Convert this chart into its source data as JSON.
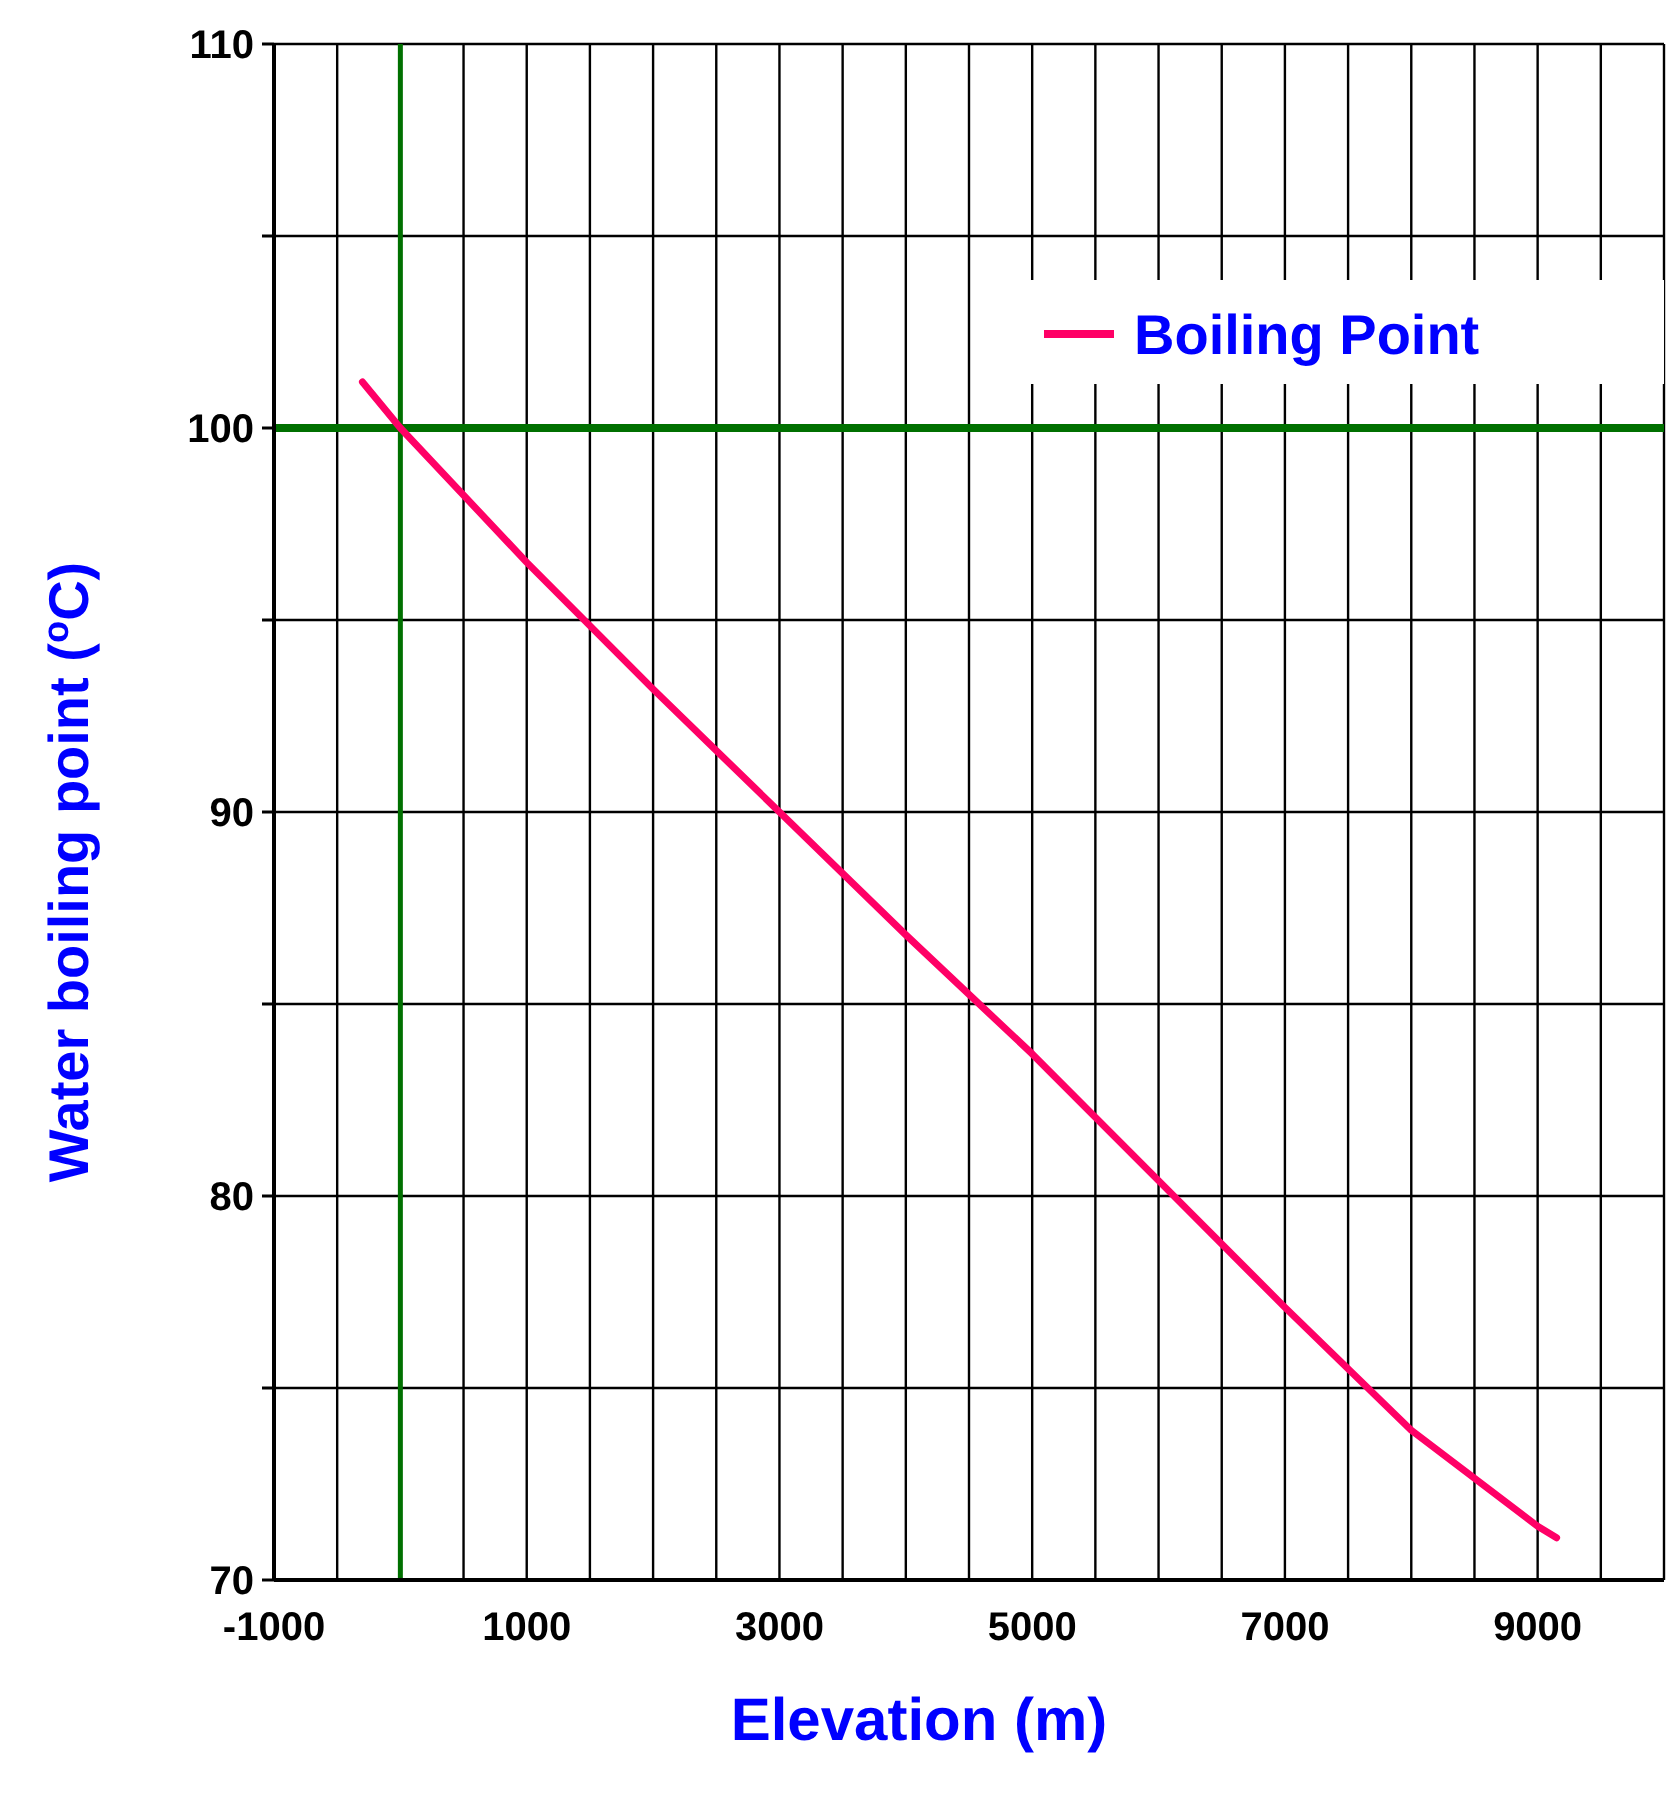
{
  "chart_data": {
    "type": "line",
    "xlabel": "Elevation (m)",
    "ylabel": "Water boiling point ($^{o}$C)",
    "xlim": [
      -1000,
      10000
    ],
    "ylim": [
      70,
      110
    ],
    "xticks": [
      -1000,
      {
        "value": -500,
        "label": null
      },
      {
        "value": 0,
        "label": null
      },
      {
        "value": 500,
        "label": null
      },
      1000,
      {
        "value": 1500,
        "label": null
      },
      {
        "value": 2000,
        "label": null
      },
      {
        "value": 2500,
        "label": null
      },
      3000,
      {
        "value": 3500,
        "label": null
      },
      {
        "value": 4000,
        "label": null
      },
      {
        "value": 4500,
        "label": null
      },
      5000,
      {
        "value": 5500,
        "label": null
      },
      {
        "value": 6000,
        "label": null
      },
      {
        "value": 6500,
        "label": null
      },
      7000,
      {
        "value": 7500,
        "label": null
      },
      {
        "value": 8000,
        "label": null
      },
      {
        "value": 8500,
        "label": null
      },
      9000,
      {
        "value": 9500,
        "label": null
      },
      {
        "value": 10000,
        "label": null
      }
    ],
    "yticks": [
      70,
      {
        "value": 75,
        "label": null
      },
      80,
      {
        "value": 85,
        "label": null
      },
      90,
      {
        "value": 95,
        "label": null
      },
      100,
      {
        "value": 105,
        "label": null
      },
      110
    ],
    "grid": true,
    "legend": "top right",
    "marker": "none",
    "line_style": "solid",
    "ref_lines": [
      {
        "axis": "y",
        "value": 100,
        "color": "#007000"
      },
      {
        "axis": "x",
        "value": 0,
        "color": "#007000"
      }
    ],
    "series": [
      {
        "name": "Boiling Point",
        "color": "#ff0066",
        "x": [
          -300,
          0,
          1000,
          2000,
          3000,
          4000,
          5000,
          6000,
          7000,
          8000,
          9000,
          9150
        ],
        "values": [
          101.2,
          100,
          96.5,
          93.2,
          90,
          86.8,
          83.7,
          80.4,
          77.1,
          73.9,
          71.4,
          71.1
        ]
      }
    ]
  }
}
